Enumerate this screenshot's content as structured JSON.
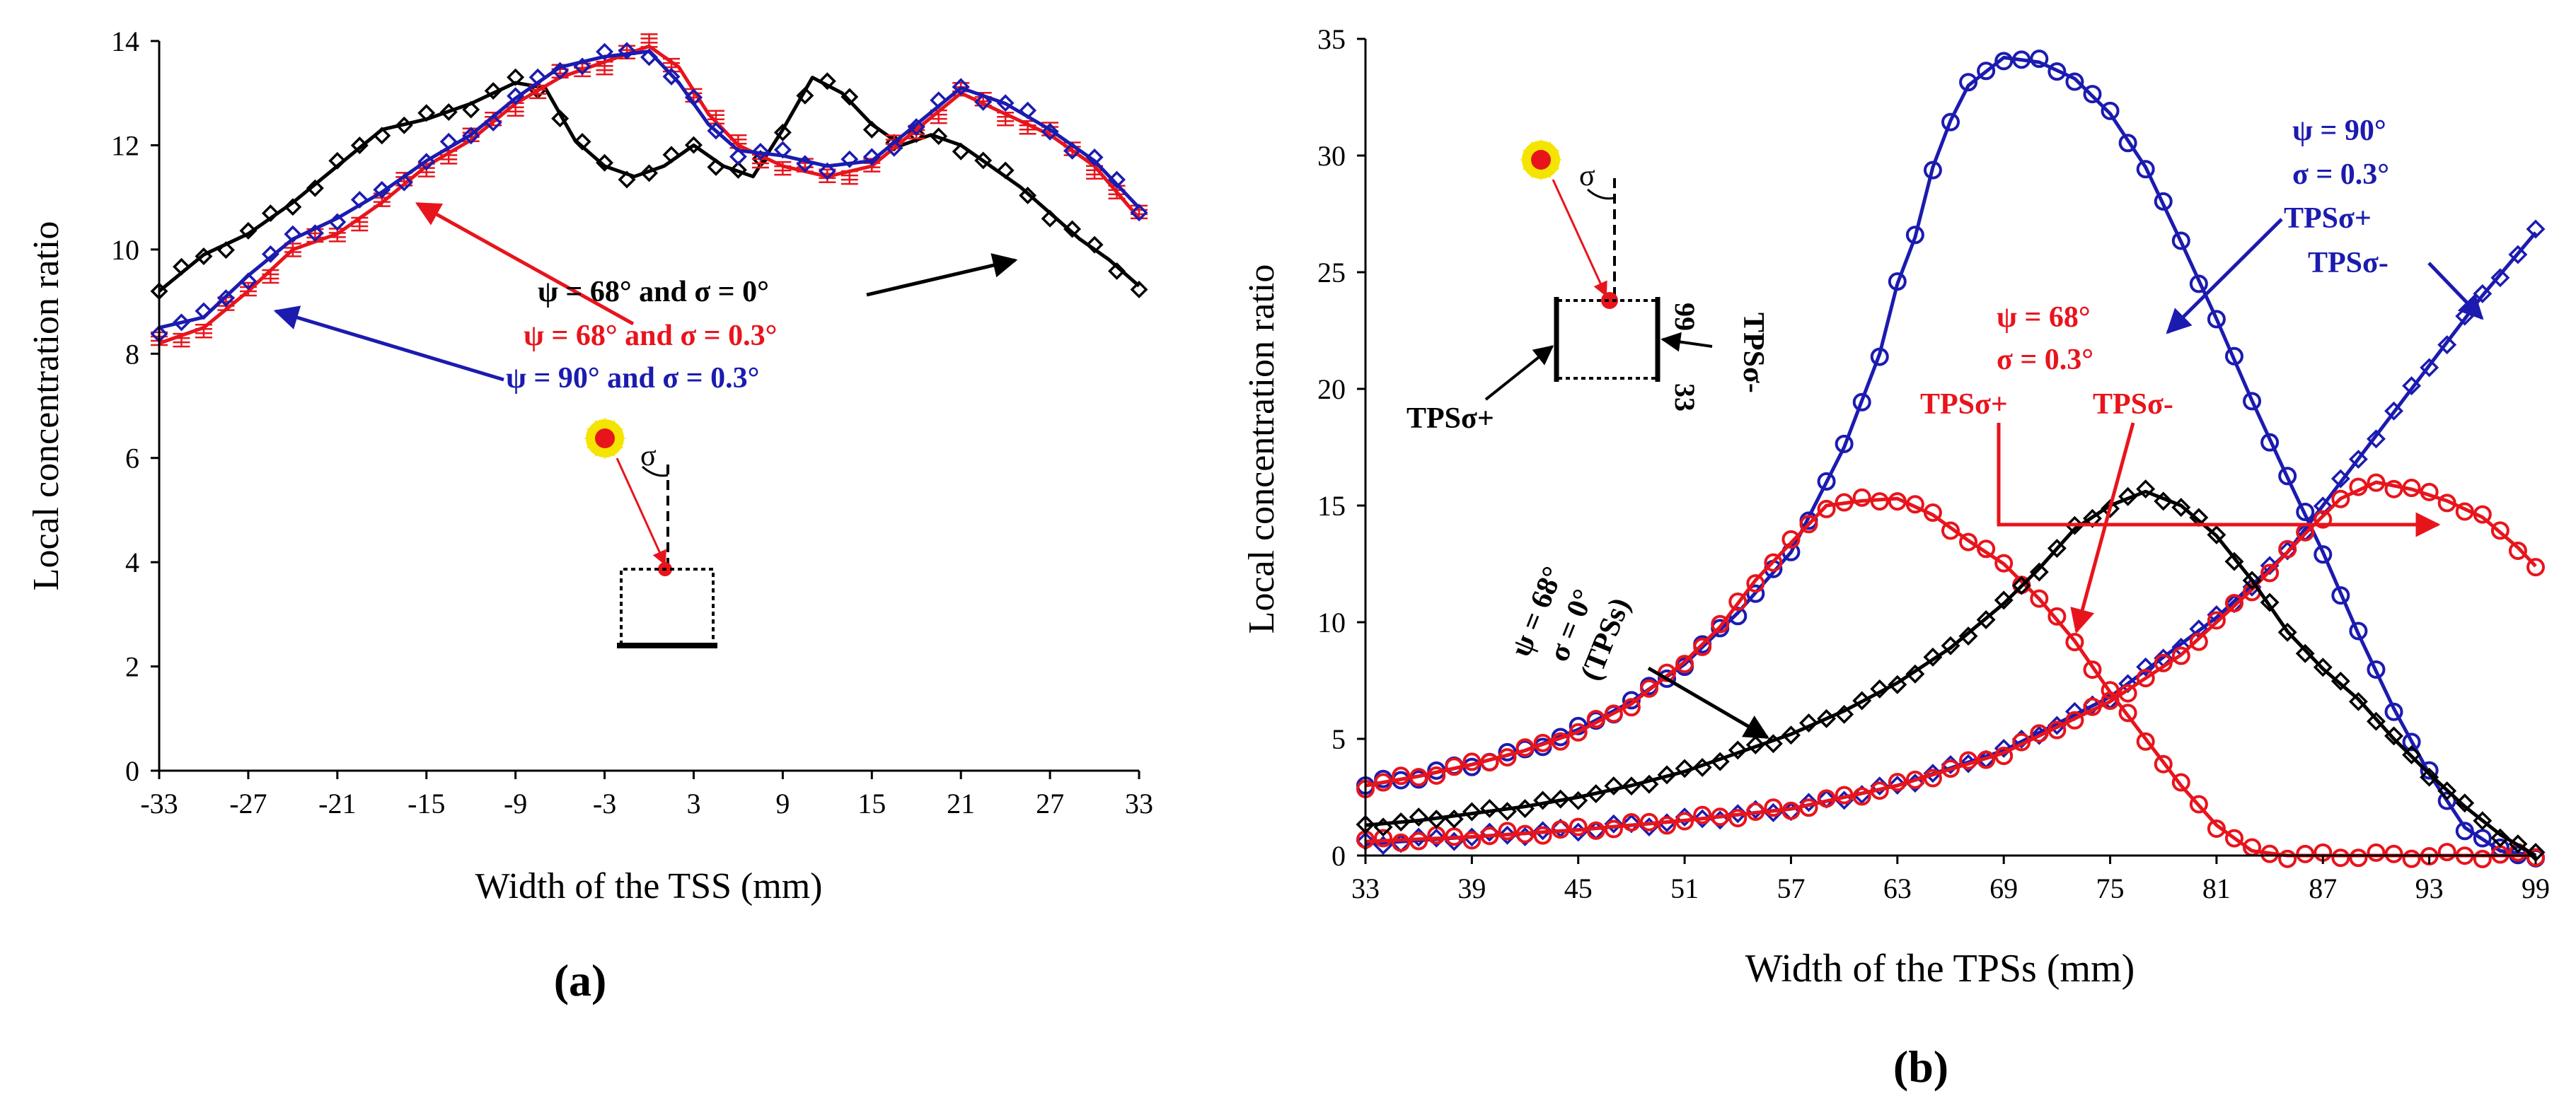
{
  "colors": {
    "black": "#000000",
    "red": "#e8141c",
    "blue": "#1b1bb0",
    "sun": "#f4e400"
  },
  "chart_data": [
    {
      "id": "a",
      "panel_label": "(a)",
      "type": "scatter+line",
      "xlabel": "Width of the TSS (mm)",
      "ylabel": "Local concentration ratio",
      "xlim": [
        -33,
        33
      ],
      "ylim": [
        0,
        14
      ],
      "xticks": [
        "-33",
        "-27",
        "-21",
        "-15",
        "-9",
        "-3",
        "3",
        "9",
        "15",
        "21",
        "27",
        "33"
      ],
      "yticks": [
        "0",
        "2",
        "4",
        "6",
        "8",
        "10",
        "12",
        "14"
      ],
      "grid": false,
      "series": [
        {
          "name": "ψ = 68° and σ = 0°",
          "color": "#000000",
          "marker": "diamond",
          "keypoints": [
            [
              -33,
              9.2
            ],
            [
              -30,
              9.9
            ],
            [
              -27,
              10.3
            ],
            [
              -24,
              10.9
            ],
            [
              -21,
              11.6
            ],
            [
              -18,
              12.3
            ],
            [
              -15,
              12.5
            ],
            [
              -12,
              12.8
            ],
            [
              -9,
              13.2
            ],
            [
              -7,
              13.1
            ],
            [
              -5,
              12.1
            ],
            [
              -3,
              11.6
            ],
            [
              -1,
              11.4
            ],
            [
              1,
              11.6
            ],
            [
              3,
              12.0
            ],
            [
              5,
              11.6
            ],
            [
              7,
              11.4
            ],
            [
              9,
              12.3
            ],
            [
              11,
              13.3
            ],
            [
              13,
              13.0
            ],
            [
              15,
              12.4
            ],
            [
              17,
              12.0
            ],
            [
              19,
              12.2
            ],
            [
              21,
              12.0
            ],
            [
              23,
              11.6
            ],
            [
              25,
              11.2
            ],
            [
              27,
              10.7
            ],
            [
              29,
              10.2
            ],
            [
              31,
              9.8
            ],
            [
              33,
              9.3
            ]
          ]
        },
        {
          "name": "ψ = 68° and σ = 0.3°",
          "color": "#e8141c",
          "marker": "errorbar",
          "keypoints": [
            [
              -33,
              8.2
            ],
            [
              -30,
              8.5
            ],
            [
              -27,
              9.2
            ],
            [
              -24,
              10.0
            ],
            [
              -21,
              10.3
            ],
            [
              -18,
              10.9
            ],
            [
              -15,
              11.6
            ],
            [
              -12,
              12.1
            ],
            [
              -9,
              12.8
            ],
            [
              -6,
              13.3
            ],
            [
              -3,
              13.6
            ],
            [
              0,
              13.9
            ],
            [
              2,
              13.5
            ],
            [
              4,
              12.6
            ],
            [
              6,
              12.0
            ],
            [
              9,
              11.6
            ],
            [
              12,
              11.4
            ],
            [
              15,
              11.6
            ],
            [
              18,
              12.3
            ],
            [
              21,
              13.0
            ],
            [
              24,
              12.6
            ],
            [
              27,
              12.2
            ],
            [
              30,
              11.6
            ],
            [
              33,
              10.6
            ]
          ]
        },
        {
          "name": "ψ = 90° and σ = 0.3°",
          "color": "#1b1bb0",
          "marker": "diamond",
          "keypoints": [
            [
              -33,
              8.5
            ],
            [
              -30,
              8.7
            ],
            [
              -27,
              9.5
            ],
            [
              -24,
              10.2
            ],
            [
              -21,
              10.6
            ],
            [
              -18,
              11.1
            ],
            [
              -15,
              11.7
            ],
            [
              -12,
              12.2
            ],
            [
              -9,
              12.9
            ],
            [
              -6,
              13.5
            ],
            [
              -3,
              13.7
            ],
            [
              0,
              13.8
            ],
            [
              2,
              13.2
            ],
            [
              4,
              12.4
            ],
            [
              6,
              11.9
            ],
            [
              9,
              11.8
            ],
            [
              12,
              11.6
            ],
            [
              15,
              11.7
            ],
            [
              18,
              12.4
            ],
            [
              21,
              13.1
            ],
            [
              24,
              12.8
            ],
            [
              27,
              12.3
            ],
            [
              30,
              11.7
            ],
            [
              33,
              10.8
            ]
          ]
        }
      ],
      "annotations": {
        "black": "ψ = 68° and σ = 0°",
        "red": "ψ = 68° and σ = 0.3°",
        "blue": "ψ = 90° and σ = 0.3°",
        "sigma": "σ"
      }
    },
    {
      "id": "b",
      "panel_label": "(b)",
      "type": "scatter+line",
      "xlabel": "Width of the TPSs  (mm)",
      "ylabel": "Local concentration ratio",
      "xlim": [
        33,
        99
      ],
      "ylim": [
        0,
        35
      ],
      "xticks": [
        "33",
        "39",
        "45",
        "51",
        "57",
        "63",
        "69",
        "75",
        "81",
        "87",
        "93",
        "99"
      ],
      "yticks": [
        "0",
        "5",
        "10",
        "15",
        "20",
        "25",
        "30",
        "35"
      ],
      "grid": false,
      "series": [
        {
          "name": "ψ = 90°, σ = 0.3°, TPSσ+",
          "color": "#1b1bb0",
          "marker": "circle",
          "keypoints": [
            [
              33,
              3.0
            ],
            [
              36,
              3.4
            ],
            [
              39,
              3.9
            ],
            [
              42,
              4.5
            ],
            [
              45,
              5.4
            ],
            [
              48,
              6.6
            ],
            [
              51,
              8.2
            ],
            [
              54,
              10.4
            ],
            [
              57,
              13.0
            ],
            [
              60,
              17.5
            ],
            [
              62,
              21.5
            ],
            [
              63,
              24.5
            ],
            [
              64,
              26.5
            ],
            [
              65,
              29.5
            ],
            [
              66,
              31.5
            ],
            [
              67,
              33.0
            ],
            [
              69,
              34.2
            ],
            [
              71,
              34.0
            ],
            [
              73,
              33.3
            ],
            [
              75,
              31.8
            ],
            [
              77,
              29.5
            ],
            [
              79,
              26.3
            ],
            [
              81,
              23.0
            ],
            [
              83,
              19.5
            ],
            [
              85,
              16.2
            ],
            [
              87,
              13.0
            ],
            [
              89,
              9.5
            ],
            [
              91,
              6.3
            ],
            [
              93,
              3.5
            ],
            [
              95,
              1.2
            ],
            [
              97,
              0.2
            ],
            [
              99,
              0.0
            ]
          ]
        },
        {
          "name": "ψ = 90°, σ = 0.3°, TPSσ-",
          "color": "#1b1bb0",
          "marker": "diamond",
          "keypoints": [
            [
              33,
              0.5
            ],
            [
              39,
              0.8
            ],
            [
              45,
              1.1
            ],
            [
              51,
              1.5
            ],
            [
              57,
              2.0
            ],
            [
              63,
              3.0
            ],
            [
              69,
              4.5
            ],
            [
              75,
              6.8
            ],
            [
              81,
              10.2
            ],
            [
              85,
              13.0
            ],
            [
              87,
              15.0
            ],
            [
              90,
              18.0
            ],
            [
              93,
              21.0
            ],
            [
              96,
              24.0
            ],
            [
              99,
              26.7
            ]
          ]
        },
        {
          "name": "ψ = 68°, σ = 0.3°, TPSσ+",
          "color": "#e8141c",
          "marker": "circle",
          "keypoints": [
            [
              33,
              3.0
            ],
            [
              36,
              3.4
            ],
            [
              39,
              3.9
            ],
            [
              42,
              4.5
            ],
            [
              45,
              5.3
            ],
            [
              48,
              6.5
            ],
            [
              51,
              8.3
            ],
            [
              53,
              9.8
            ],
            [
              55,
              11.8
            ],
            [
              57,
              13.4
            ],
            [
              59,
              15.0
            ],
            [
              61,
              15.2
            ],
            [
              63,
              15.3
            ],
            [
              65,
              14.6
            ],
            [
              67,
              13.5
            ],
            [
              69,
              12.5
            ],
            [
              71,
              11.0
            ],
            [
              73,
              9.2
            ],
            [
              75,
              7.0
            ],
            [
              77,
              5.0
            ],
            [
              79,
              3.0
            ],
            [
              81,
              1.3
            ],
            [
              83,
              0.2
            ],
            [
              85,
              0.0
            ],
            [
              99,
              0.0
            ]
          ]
        },
        {
          "name": "ψ = 68°, σ = 0.3°, TPSσ-",
          "color": "#e8141c",
          "marker": "circle",
          "keypoints": [
            [
              33,
              0.6
            ],
            [
              39,
              0.8
            ],
            [
              45,
              1.1
            ],
            [
              51,
              1.5
            ],
            [
              57,
              2.0
            ],
            [
              63,
              3.0
            ],
            [
              69,
              4.4
            ],
            [
              75,
              6.6
            ],
            [
              79,
              8.6
            ],
            [
              83,
              11.4
            ],
            [
              86,
              13.8
            ],
            [
              88,
              15.3
            ],
            [
              90,
              16.0
            ],
            [
              92,
              15.7
            ],
            [
              94,
              15.2
            ],
            [
              96,
              14.5
            ],
            [
              98,
              13.2
            ],
            [
              99,
              12.4
            ]
          ]
        },
        {
          "name": "ψ = 68°, σ = 0° (TPSs)",
          "color": "#000000",
          "marker": "diamond",
          "keypoints": [
            [
              33,
              1.3
            ],
            [
              36,
              1.5
            ],
            [
              39,
              1.8
            ],
            [
              42,
              2.1
            ],
            [
              45,
              2.5
            ],
            [
              48,
              3.0
            ],
            [
              51,
              3.6
            ],
            [
              54,
              4.4
            ],
            [
              57,
              5.2
            ],
            [
              60,
              6.2
            ],
            [
              63,
              7.4
            ],
            [
              66,
              8.9
            ],
            [
              69,
              10.8
            ],
            [
              71,
              12.3
            ],
            [
              73,
              14.0
            ],
            [
              75,
              15.0
            ],
            [
              77,
              15.6
            ],
            [
              79,
              15.0
            ],
            [
              81,
              13.7
            ],
            [
              83,
              11.8
            ],
            [
              85,
              9.6
            ],
            [
              87,
              8.0
            ],
            [
              89,
              6.7
            ],
            [
              91,
              5.0
            ],
            [
              93,
              3.5
            ],
            [
              95,
              2.1
            ],
            [
              97,
              0.9
            ],
            [
              99,
              0.0
            ]
          ]
        }
      ],
      "annotations": {
        "blue_psi": "ψ = 90°",
        "blue_sigma": "σ = 0.3°",
        "blue_plus": "TPSσ+",
        "blue_minus": "TPSσ-",
        "red_psi": "ψ = 68°",
        "red_sigma": "σ = 0.3°",
        "red_plus": "TPSσ+",
        "red_minus": "TPSσ-",
        "black_psi": "ψ = 68°",
        "black_sigma": "σ = 0°",
        "black_tps": "(TPSs)",
        "inset_plus": "TPSσ+",
        "inset_minus": "TPSσ-",
        "inset_33": "33",
        "inset_99": "99",
        "sigma": "σ"
      }
    }
  ]
}
